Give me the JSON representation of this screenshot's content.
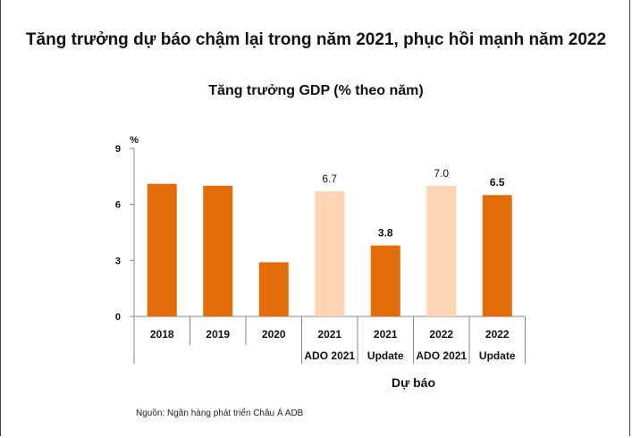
{
  "title": "Tăng trưởng dự báo chậm lại trong năm 2021, phục hồi mạnh năm 2022",
  "source": "Nguồn: Ngân hàng phát triển Châu Á ADB",
  "chart_data": {
    "type": "bar",
    "title": "Tăng trưởng GDP (% theo năm)",
    "ylabel": "%",
    "ylim": [
      0,
      9
    ],
    "yticks": [
      0,
      3,
      6,
      9
    ],
    "grid": false,
    "categories": [
      {
        "year": "2018",
        "sub": ""
      },
      {
        "year": "2019",
        "sub": ""
      },
      {
        "year": "2020",
        "sub": ""
      },
      {
        "year": "2021",
        "sub": "ADO 2021"
      },
      {
        "year": "2021",
        "sub": "Update"
      },
      {
        "year": "2022",
        "sub": "ADO 2021"
      },
      {
        "year": "2022",
        "sub": "Update"
      }
    ],
    "values": [
      7.1,
      7.0,
      2.9,
      6.7,
      3.8,
      7.0,
      6.5
    ],
    "data_labels": [
      "",
      "",
      "",
      "6.7",
      "3.8",
      "7.0",
      "6.5"
    ],
    "label_bold": [
      false,
      false,
      false,
      false,
      true,
      false,
      true
    ],
    "colors": [
      "#E36C0A",
      "#E36C0A",
      "#E36C0A",
      "#FBD5B5",
      "#E36C0A",
      "#FBD5B5",
      "#E36C0A"
    ],
    "group_label": "Dự báo"
  }
}
